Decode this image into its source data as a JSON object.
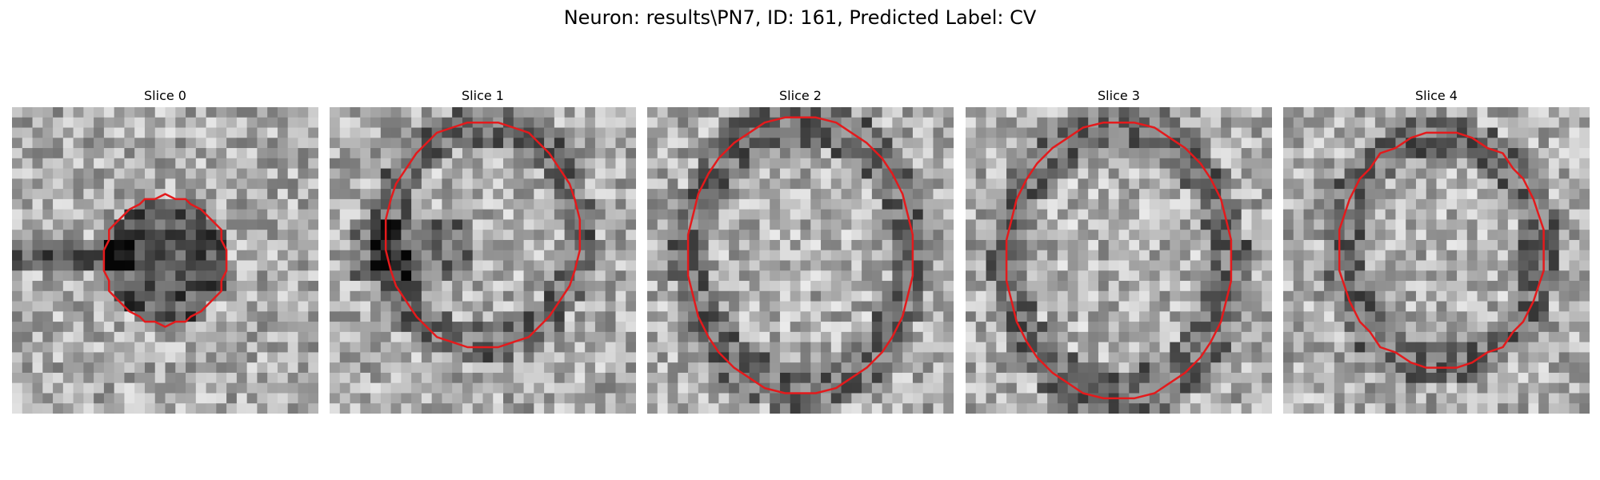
{
  "figure": {
    "title": "Neuron: results\\PN7, ID: 161, Predicted Label: CV",
    "contour_color": "#e41a1c",
    "panels": [
      {
        "title": "Slice 0"
      },
      {
        "title": "Slice 1"
      },
      {
        "title": "Slice 2"
      },
      {
        "title": "Slice 3"
      },
      {
        "title": "Slice 4"
      }
    ]
  }
}
